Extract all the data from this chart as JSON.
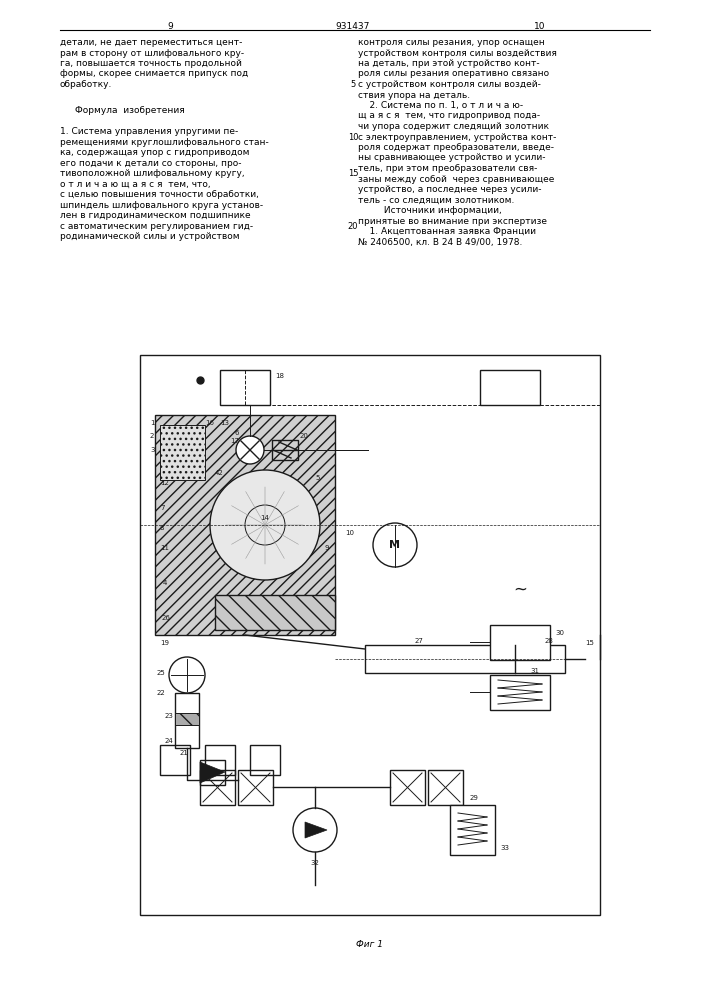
{
  "page_number_left": "9",
  "patent_number": "931437",
  "page_number_right": "10",
  "col_left_text": [
    "детали, не дает переместиться цент-",
    "рам в сторону от шлифовального кру-",
    "га, повышается точность продольной",
    "формы, скорее снимается припуск под",
    "обработку."
  ],
  "formula_header": "Формула  изобретения",
  "col_left_formula": [
    "1. Система управления упругими пе-",
    "ремещениями круглошлифовального стан-",
    "ка, содержащая упор с гидроприводом",
    "его подачи к детали со стороны, про-",
    "тивоположной шлифовальному кругу,",
    "о т л и ч а ю щ а я с я  тем, что,",
    "с целью повышения точности обработки,",
    "шпиндель шлифовального круга установ-",
    "лен в гидродинамическом подшипнике",
    "с автоматическим регулированием гид-",
    "родинамической силы и устройством"
  ],
  "col_right_text": [
    "контроля силы резания, упор оснащен",
    "устройством контроля силы воздействия",
    "на деталь, при этой устройство конт-",
    "роля силы резания оперативно связано",
    "с устройством контроля силы воздей-",
    "ствия упора на деталь.",
    "    2. Система по п. 1, о т л и ч а ю-",
    "щ а я с я  тем, что гидропривод пода-",
    "чи упора содержит следящий золотник",
    "с электроуправлением, устройства конт-",
    "роля содержат преобразователи, введе-",
    "ны сравнивающее устройство и усили-",
    "тель, при этом преобразователи свя-",
    "заны между собой  через сравнивающее",
    "устройство, а последнее через усили-",
    "тель - со следящим золотником.",
    "         Источники информации,",
    "принятые во внимание при экспертизе",
    "    1. Акцептованная заявка Франции",
    "№ 2406500, кл. В 24 В 49/00, 1978."
  ],
  "line_numbers": [
    "5",
    "10",
    "15",
    "20"
  ],
  "caption": "Фиг 1",
  "bg_color": "#ffffff",
  "text_color": "#000000",
  "diagram_color": "#1a1a1a"
}
